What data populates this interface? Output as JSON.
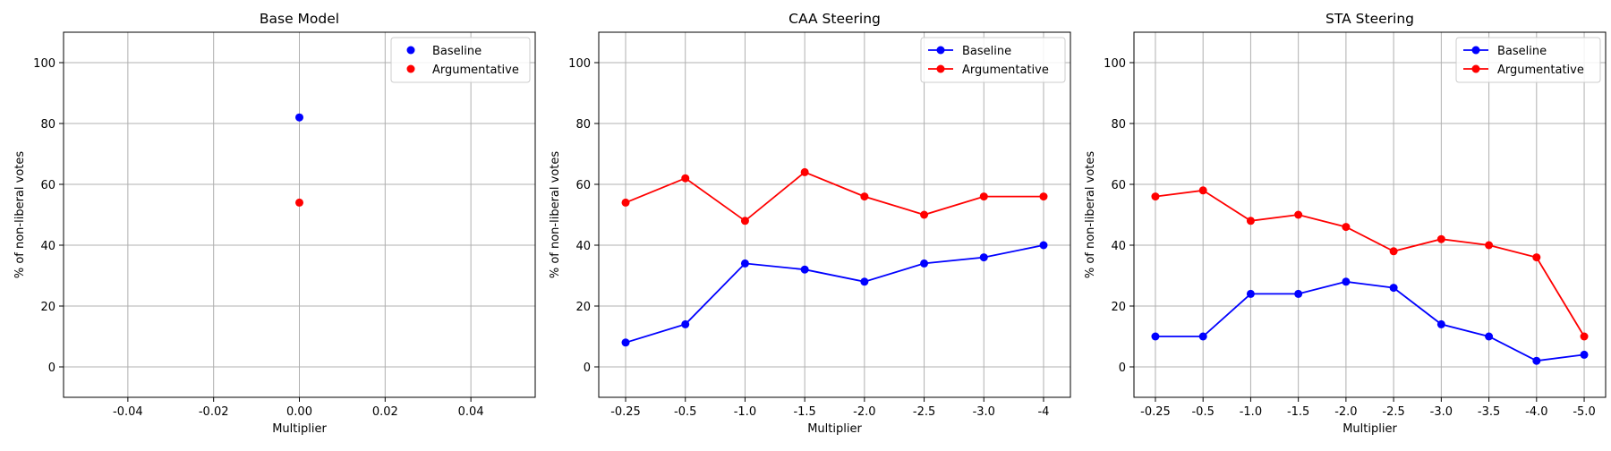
{
  "chart_data": [
    {
      "type": "scatter",
      "title": "Base Model",
      "xlabel": "Multiplier",
      "ylabel": "% of non-liberal votes",
      "xlim": [
        -0.055,
        0.055
      ],
      "ylim": [
        -10,
        110
      ],
      "xticks": [
        "-0.04",
        "-0.02",
        "0.00",
        "0.02",
        "0.04"
      ],
      "xtick_values": [
        -0.04,
        -0.02,
        0,
        0.02,
        0.04
      ],
      "yticks": [
        0,
        20,
        40,
        60,
        80,
        100
      ],
      "grid": true,
      "legend_position": "top-right",
      "x": [
        0.0
      ],
      "series": [
        {
          "name": "Baseline",
          "values": [
            82
          ],
          "color": "#0000ff"
        },
        {
          "name": "Argumentative",
          "values": [
            54
          ],
          "color": "#ff0000"
        }
      ]
    },
    {
      "type": "line",
      "title": "CAA Steering",
      "xlabel": "Multiplier",
      "ylabel": "% of non-liberal votes",
      "ylim": [
        -10,
        110
      ],
      "yticks": [
        0,
        20,
        40,
        60,
        80,
        100
      ],
      "grid": true,
      "legend_position": "top-right",
      "categories": [
        "-0.25",
        "-0.5",
        "-1.0",
        "-1.5",
        "-2.0",
        "-2.5",
        "-3.0",
        "-4"
      ],
      "series": [
        {
          "name": "Baseline",
          "values": [
            8,
            14,
            34,
            32,
            28,
            34,
            36,
            40
          ],
          "color": "#0000ff"
        },
        {
          "name": "Argumentative",
          "values": [
            54,
            62,
            48,
            64,
            56,
            50,
            56,
            56
          ],
          "color": "#ff0000"
        }
      ]
    },
    {
      "type": "line",
      "title": "STA Steering",
      "xlabel": "Multiplier",
      "ylabel": "% of non-liberal votes",
      "ylim": [
        -10,
        110
      ],
      "yticks": [
        0,
        20,
        40,
        60,
        80,
        100
      ],
      "grid": true,
      "legend_position": "top-right",
      "categories": [
        "-0.25",
        "-0.5",
        "-1.0",
        "-1.5",
        "-2.0",
        "-2.5",
        "-3.0",
        "-3.5",
        "-4.0",
        "-5.0"
      ],
      "series": [
        {
          "name": "Baseline",
          "values": [
            10,
            10,
            24,
            24,
            28,
            26,
            14,
            10,
            2,
            4
          ],
          "color": "#0000ff"
        },
        {
          "name": "Argumentative",
          "values": [
            56,
            58,
            48,
            50,
            46,
            38,
            42,
            40,
            36,
            10
          ],
          "color": "#ff0000"
        }
      ]
    }
  ]
}
